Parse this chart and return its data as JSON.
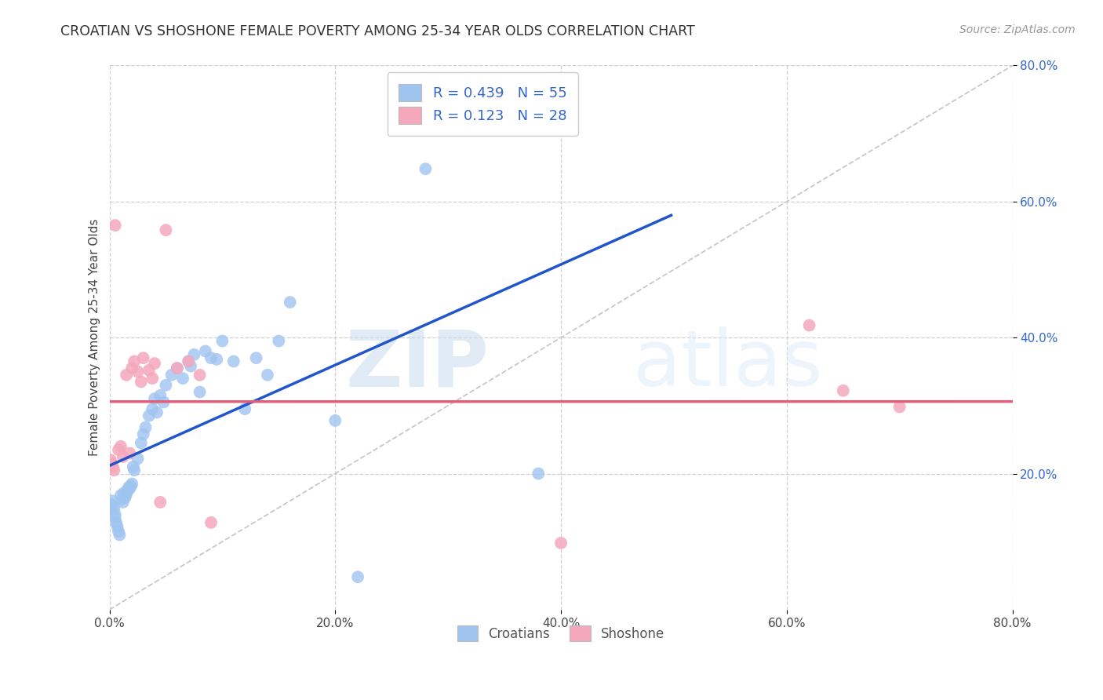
{
  "title": "CROATIAN VS SHOSHONE FEMALE POVERTY AMONG 25-34 YEAR OLDS CORRELATION CHART",
  "source": "Source: ZipAtlas.com",
  "ylabel": "Female Poverty Among 25-34 Year Olds",
  "xlim": [
    0.0,
    0.8
  ],
  "ylim": [
    0.0,
    0.8
  ],
  "xtick_vals": [
    0.0,
    0.2,
    0.4,
    0.6,
    0.8
  ],
  "ytick_vals": [
    0.2,
    0.4,
    0.6,
    0.8
  ],
  "background_color": "#ffffff",
  "grid_color": "#d0d0d0",
  "croatian_color": "#a0c4f0",
  "shoshone_color": "#f5a8bc",
  "trendline_croatian_color": "#2255cc",
  "trendline_shoshone_color": "#e0607a",
  "diagonal_color": "#c8c8c8",
  "legend_text_color": "#3366cc",
  "tick_label_color": "#3366cc",
  "croatian_R": 0.439,
  "croatian_N": 55,
  "shoshone_R": 0.123,
  "shoshone_N": 28,
  "watermark_zip": "ZIP",
  "watermark_atlas": "atlas",
  "croatian_x": [
    0.001,
    0.002,
    0.003,
    0.004,
    0.005,
    0.005,
    0.006,
    0.007,
    0.008,
    0.009,
    0.01,
    0.011,
    0.012,
    0.013,
    0.014,
    0.015,
    0.016,
    0.017,
    0.018,
    0.019,
    0.02,
    0.021,
    0.022,
    0.025,
    0.028,
    0.03,
    0.032,
    0.035,
    0.038,
    0.04,
    0.042,
    0.045,
    0.048,
    0.05,
    0.055,
    0.06,
    0.065,
    0.07,
    0.072,
    0.075,
    0.08,
    0.085,
    0.09,
    0.095,
    0.1,
    0.11,
    0.12,
    0.13,
    0.14,
    0.15,
    0.16,
    0.2,
    0.22,
    0.28,
    0.38
  ],
  "croatian_y": [
    0.155,
    0.16,
    0.152,
    0.148,
    0.14,
    0.135,
    0.128,
    0.122,
    0.115,
    0.11,
    0.168,
    0.162,
    0.158,
    0.172,
    0.165,
    0.17,
    0.175,
    0.18,
    0.178,
    0.182,
    0.185,
    0.21,
    0.205,
    0.222,
    0.245,
    0.258,
    0.268,
    0.285,
    0.295,
    0.31,
    0.29,
    0.315,
    0.305,
    0.33,
    0.345,
    0.355,
    0.34,
    0.365,
    0.358,
    0.375,
    0.32,
    0.38,
    0.37,
    0.368,
    0.395,
    0.365,
    0.295,
    0.37,
    0.345,
    0.395,
    0.452,
    0.278,
    0.048,
    0.648,
    0.2
  ],
  "shoshone_x": [
    0.001,
    0.002,
    0.003,
    0.004,
    0.005,
    0.008,
    0.01,
    0.012,
    0.015,
    0.018,
    0.02,
    0.022,
    0.025,
    0.028,
    0.03,
    0.035,
    0.038,
    0.04,
    0.045,
    0.05,
    0.06,
    0.07,
    0.08,
    0.09,
    0.4,
    0.62,
    0.65,
    0.7
  ],
  "shoshone_y": [
    0.22,
    0.215,
    0.21,
    0.205,
    0.565,
    0.235,
    0.24,
    0.225,
    0.345,
    0.23,
    0.355,
    0.365,
    0.35,
    0.335,
    0.37,
    0.352,
    0.34,
    0.362,
    0.158,
    0.558,
    0.355,
    0.365,
    0.345,
    0.128,
    0.098,
    0.418,
    0.322,
    0.298
  ]
}
